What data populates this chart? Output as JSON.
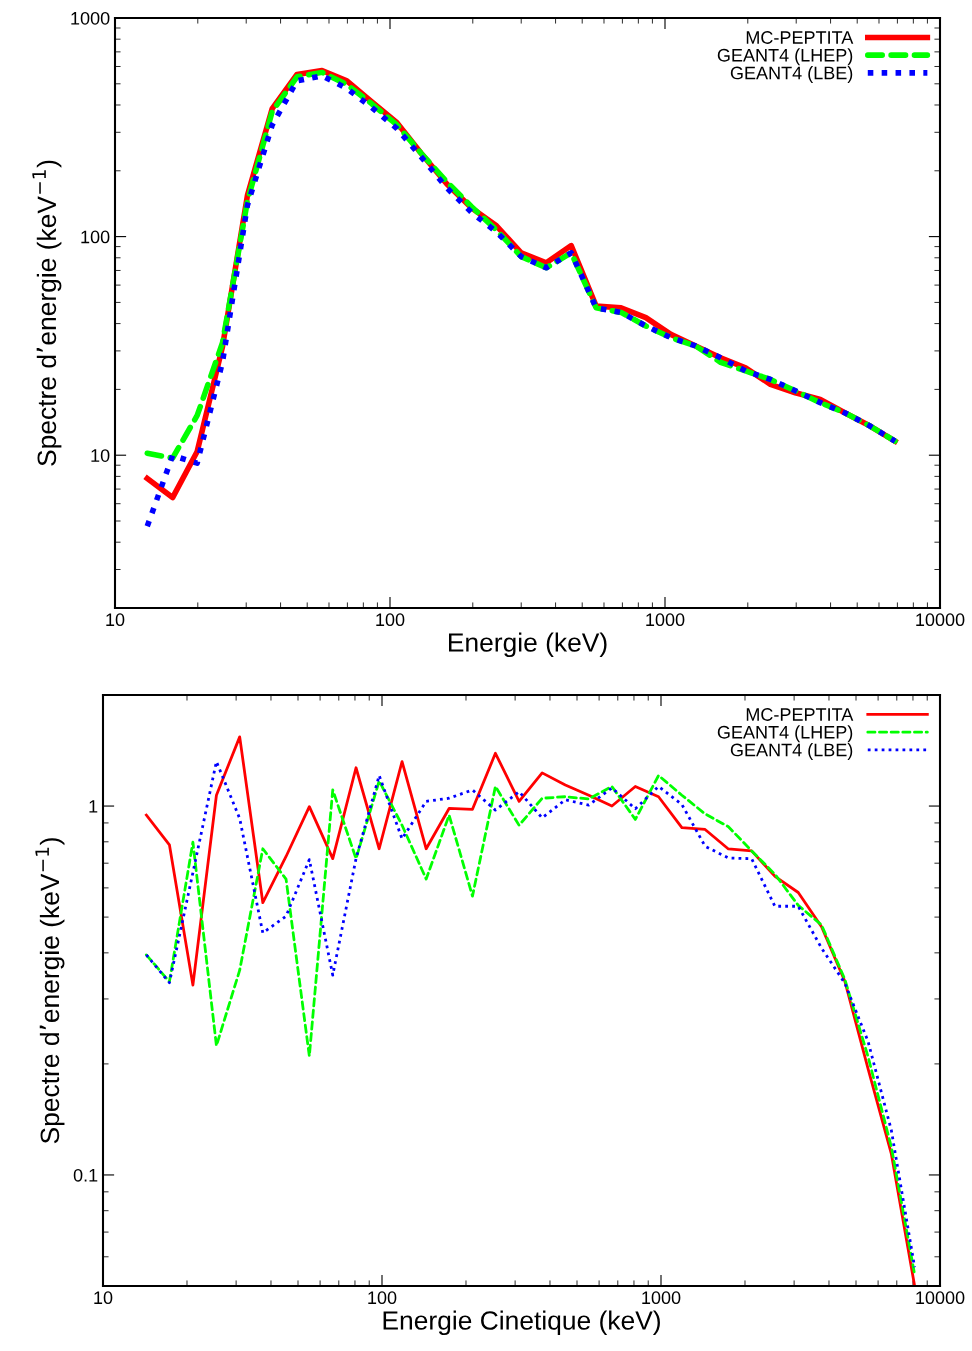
{
  "chart_data": [
    {
      "type": "line",
      "xlabel": "Energie (keV)",
      "ylabel": "Spectre d’energie (keV$^{−1}$)",
      "log": "xy",
      "xlim": [
        10,
        10000
      ],
      "ylim": [
        2,
        1000
      ],
      "xticks": [
        10,
        100,
        1000,
        10000
      ],
      "yticks": [
        10,
        100,
        1000
      ],
      "legend": "top right",
      "grid": false,
      "x": [
        13.1,
        16.2,
        19.9,
        24.6,
        30.3,
        37.3,
        45.9,
        56.6,
        69.7,
        85.9,
        106,
        130,
        161,
        198,
        244,
        300,
        370,
        456,
        562,
        692,
        852,
        1050,
        1293,
        1593,
        1963,
        2418,
        2979,
        3670,
        4521,
        5570,
        6862
      ],
      "series": [
        {
          "name": "MC-PEPTITA",
          "color": "#ff0000",
          "line_style": "solid",
          "values": [
            7.83,
            6.4,
            10.4,
            31.4,
            154,
            385,
            552,
            575,
            516,
            413,
            332,
            240,
            174,
            135,
            112,
            84.3,
            75.9,
            91,
            48.1,
            47.2,
            42.6,
            35.7,
            31.6,
            27.9,
            25.1,
            21.1,
            19.3,
            18.0,
            15.6,
            13.6,
            11.6
          ]
        },
        {
          "name": "GEANT4 (LHEP)",
          "color": "#00ff00",
          "line_style": "dashed",
          "values": [
            10.2,
            9.7,
            15.2,
            32.7,
            145,
            374,
            538,
            564,
            496,
            405,
            324,
            240,
            178,
            137,
            107,
            81,
            72,
            84.3,
            47.2,
            45.0,
            39.0,
            34.5,
            31.6,
            26.6,
            24.3,
            22.2,
            19.7,
            17.4,
            15.6,
            13.6,
            11.6
          ]
        },
        {
          "name": "GEANT4 (LBE)",
          "color": "#0000ff",
          "line_style": "dotted",
          "values": [
            4.73,
            9.96,
            9.2,
            26.7,
            139,
            324,
            516,
            544,
            476,
            389,
            312,
            231,
            167,
            129,
            105,
            81,
            72,
            84.3,
            47.2,
            45.0,
            39.0,
            34.5,
            31.6,
            27.9,
            24.3,
            22.2,
            19.7,
            17.4,
            15.6,
            13.6,
            11.6
          ]
        }
      ]
    },
    {
      "type": "line",
      "xlabel": "Energie Cinetique (keV)",
      "ylabel": "Spectre d’energie (keV$^{−1}$)",
      "log": "xy",
      "xlim": [
        10,
        10000
      ],
      "ylim": [
        0.05,
        2
      ],
      "xticks": [
        10,
        100,
        1000,
        10000
      ],
      "yticks": [
        0.1,
        1
      ],
      "legend": "top right",
      "grid": false,
      "x": [
        14.3,
        17.3,
        21.0,
        25.5,
        30.9,
        37.4,
        45.3,
        54.9,
        66.6,
        80.7,
        97.7,
        118,
        144,
        174,
        211,
        255,
        310,
        375,
        454,
        551,
        667,
        809,
        980,
        1188,
        1439,
        1744,
        2113,
        2561,
        3104,
        3762,
        4559,
        5524,
        6694,
        8112
      ],
      "series": [
        {
          "name": "MC-PEPTITA",
          "color": "#ff0000",
          "line_style": "solid",
          "values": [
            0.945,
            0.785,
            0.327,
            1.07,
            1.54,
            0.547,
            0.73,
            0.996,
            0.72,
            1.27,
            0.766,
            1.32,
            0.766,
            0.985,
            0.98,
            1.39,
            1.03,
            1.23,
            1.14,
            1.07,
            1.0,
            1.13,
            1.06,
            0.874,
            0.864,
            0.765,
            0.756,
            0.645,
            0.583,
            0.471,
            0.335,
            0.194,
            0.114,
            0.05
          ]
        },
        {
          "name": "GEANT4 (LHEP)",
          "color": "#00ff00",
          "line_style": "dashed",
          "values": [
            0.395,
            0.334,
            0.798,
            0.224,
            0.359,
            0.766,
            0.634,
            0.21,
            1.106,
            0.72,
            1.17,
            0.887,
            0.634,
            0.945,
            0.57,
            1.13,
            0.887,
            1.05,
            1.06,
            1.045,
            1.13,
            0.92,
            1.21,
            1.07,
            0.952,
            0.879,
            0.756,
            0.653,
            0.538,
            0.476,
            0.339,
            0.209,
            0.119,
            0.0537
          ]
        },
        {
          "name": "GEANT4 (LBE)",
          "color": "#0000ff",
          "line_style": "dotted",
          "values": [
            0.395,
            0.332,
            0.66,
            1.32,
            0.925,
            0.453,
            0.503,
            0.716,
            0.348,
            0.72,
            1.21,
            0.815,
            1.03,
            1.05,
            1.106,
            0.975,
            1.094,
            0.929,
            1.04,
            1.006,
            1.12,
            0.983,
            1.13,
            1.01,
            0.778,
            0.723,
            0.72,
            0.535,
            0.535,
            0.412,
            0.331,
            0.23,
            0.132,
            0.0562
          ]
        }
      ]
    }
  ]
}
